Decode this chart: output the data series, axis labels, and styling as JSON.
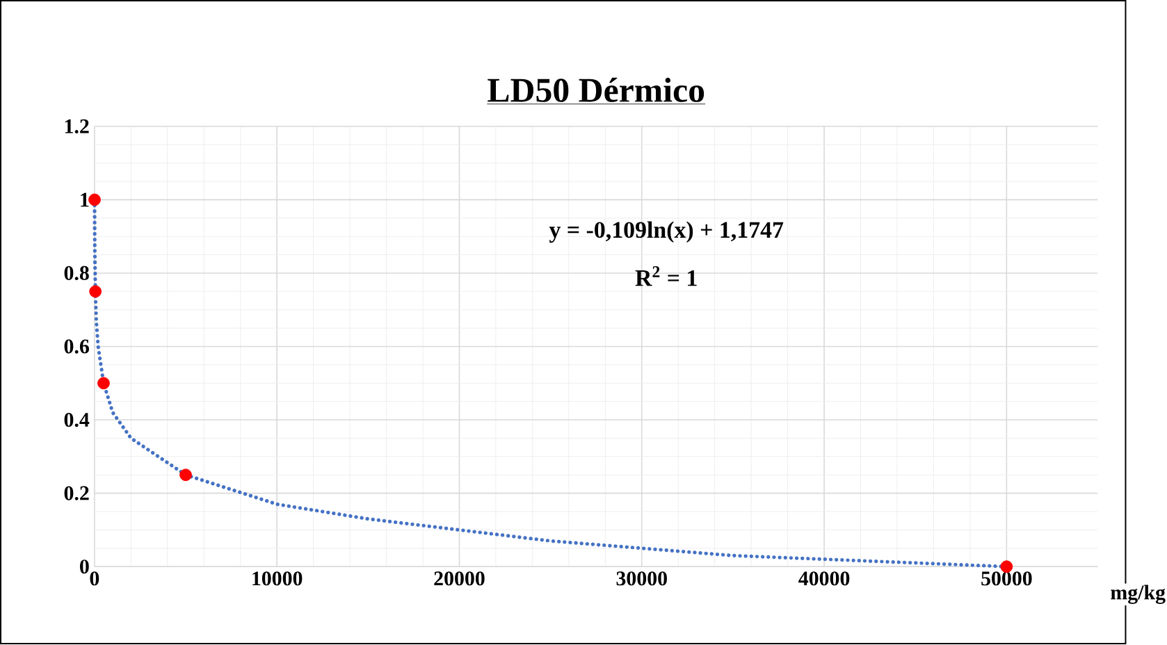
{
  "chart_data": {
    "type": "scatter",
    "title": "LD50 Dérmico",
    "xlabel": "mg/kg",
    "annotations": [
      "y = -0,109ln(x) + 1,1747",
      "R$^{2}$ = 1"
    ],
    "xlim": [
      0,
      55000
    ],
    "xticks": [
      0,
      10000,
      20000,
      30000,
      40000,
      50000
    ],
    "ylim": [
      0,
      1.2
    ],
    "yticks": [
      0,
      0.2,
      0.4,
      0.6,
      0.8,
      1,
      1.2
    ],
    "grid": true,
    "series": [
      {
        "type": "line",
        "color": "#4472c4",
        "line_style": "dotted",
        "marker": "none",
        "x": [
          5,
          10,
          20,
          50,
          100,
          200,
          500,
          1000,
          2000,
          5000,
          10000,
          15000,
          20000,
          25000,
          30000,
          35000,
          40000,
          45000,
          50000
        ],
        "values": [
          1.0,
          0.92,
          0.85,
          0.75,
          0.67,
          0.6,
          0.5,
          0.42,
          0.35,
          0.25,
          0.17,
          0.13,
          0.1,
          0.07,
          0.05,
          0.03,
          0.02,
          0.01,
          0
        ]
      },
      {
        "type": "scatter",
        "color": "#ff0000",
        "marker": "circle",
        "x": [
          5,
          50,
          500,
          5000,
          50000
        ],
        "values": [
          1,
          0.75,
          0.5,
          0.25,
          0
        ]
      }
    ]
  }
}
